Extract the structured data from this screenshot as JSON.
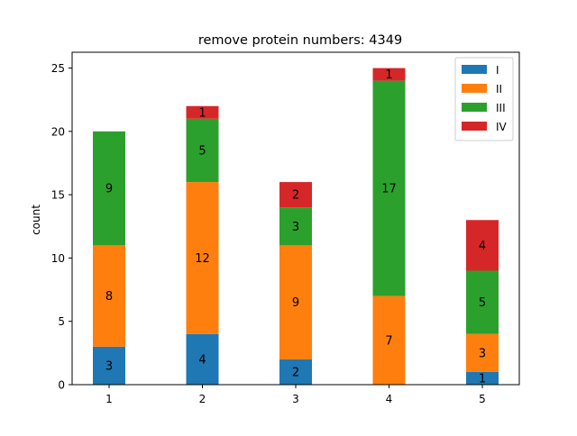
{
  "chart_data": {
    "type": "bar",
    "stacked": true,
    "title": "remove protein numbers: 4349",
    "xlabel": "",
    "ylabel": "count",
    "categories": [
      "1",
      "2",
      "3",
      "4",
      "5"
    ],
    "yticks": [
      0,
      5,
      10,
      15,
      20,
      25
    ],
    "ylim": [
      0,
      26.25
    ],
    "series": [
      {
        "name": "I",
        "color": "#1f77b4",
        "values": [
          3,
          4,
          2,
          0,
          1
        ]
      },
      {
        "name": "II",
        "color": "#ff7f0e",
        "values": [
          8,
          12,
          9,
          7,
          3
        ]
      },
      {
        "name": "III",
        "color": "#2ca02c",
        "values": [
          9,
          5,
          3,
          17,
          5
        ]
      },
      {
        "name": "IV",
        "color": "#d62728",
        "values": [
          0,
          1,
          2,
          1,
          4
        ]
      }
    ],
    "legend_position": "top-right",
    "grid": false
  }
}
